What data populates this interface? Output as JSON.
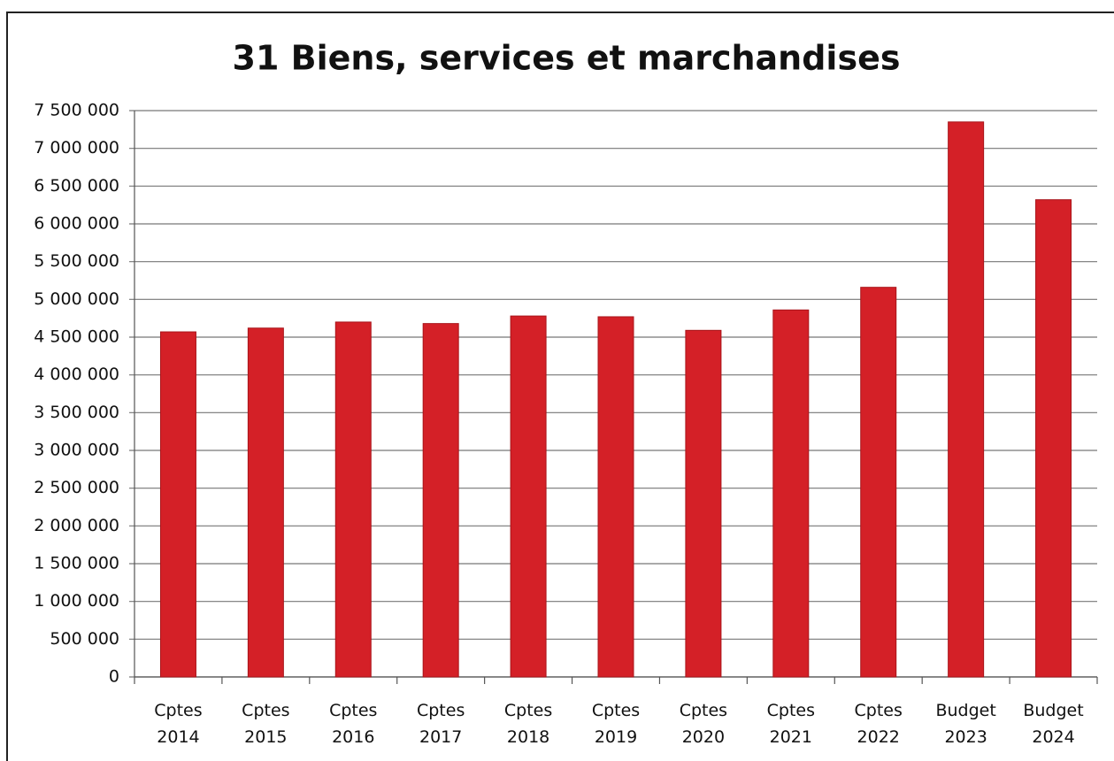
{
  "chart_data": {
    "type": "bar",
    "title": "31 Biens, services et marchandises",
    "categories": [
      "Cptes 2014",
      "Cptes 2015",
      "Cptes 2016",
      "Cptes 2017",
      "Cptes 2018",
      "Cptes 2019",
      "Cptes 2020",
      "Cptes 2021",
      "Cptes 2022",
      "Budget 2023",
      "Budget 2024"
    ],
    "values": [
      4570000,
      4620000,
      4700000,
      4680000,
      4780000,
      4770000,
      4590000,
      4860000,
      5160000,
      7350000,
      6320000
    ],
    "color": "#d42027",
    "ylim": [
      0,
      7500000
    ],
    "yticks": [
      0,
      {
        "value": 500000,
        "label": "500 000"
      },
      {
        "value": 1000000,
        "label": "1 000 000"
      },
      {
        "value": 1500000,
        "label": "1 500 000"
      },
      {
        "value": 2000000,
        "label": "2 000 000"
      },
      {
        "value": 2500000,
        "label": "2 500 000"
      },
      {
        "value": 3000000,
        "label": "3 000 000"
      },
      {
        "value": 3500000,
        "label": "3 500 000"
      },
      {
        "value": 4000000,
        "label": "4 000 000"
      },
      {
        "value": 4500000,
        "label": "4 500 000"
      },
      {
        "value": 5000000,
        "label": "5 000 000"
      },
      {
        "value": 5500000,
        "label": "5 500 000"
      },
      {
        "value": 6000000,
        "label": "6 000 000"
      },
      {
        "value": 6500000,
        "label": "6 500 000"
      },
      {
        "value": 7000000,
        "label": "7 000 000"
      },
      {
        "value": 7500000,
        "label": "7 500 000"
      }
    ],
    "grid": true
  }
}
